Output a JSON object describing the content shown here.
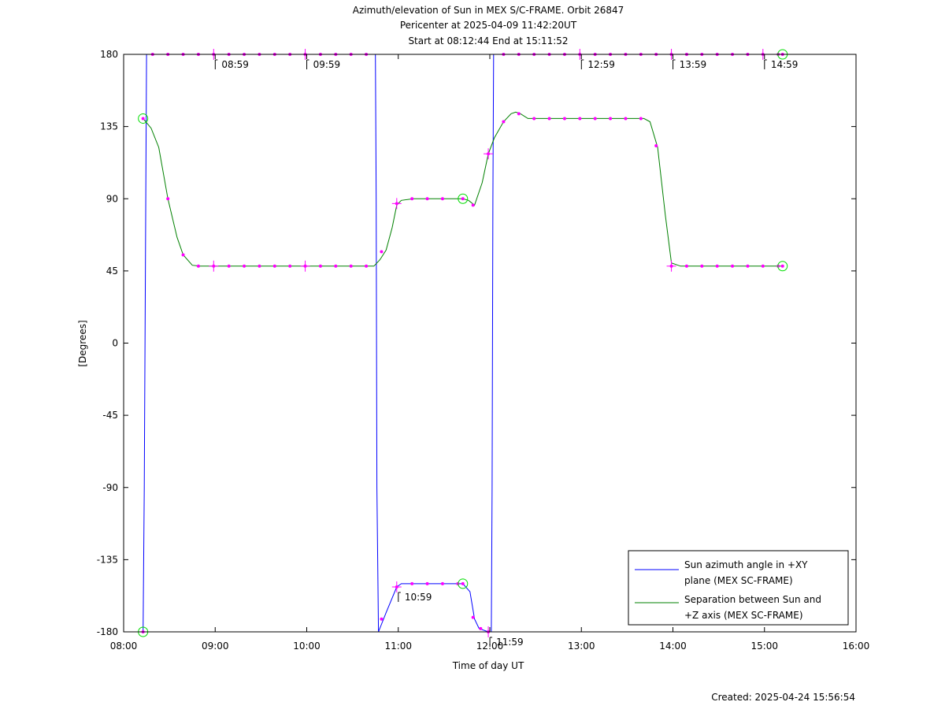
{
  "chart_data": {
    "type": "line",
    "title": "Azimuth/elevation of Sun in MEX S/C-FRAME.  Orbit 26847",
    "subtitle_lines": [
      "Pericenter at 2025-04-09 11:42:20UT",
      "Start at 08:12:44 End at 15:11:52"
    ],
    "xlabel": "Time of day UT",
    "ylabel": "[Degrees]",
    "xlim": [
      "08:00",
      "16:00"
    ],
    "ylim": [
      -180,
      180
    ],
    "x_ticks": [
      "08:00",
      "09:00",
      "10:00",
      "11:00",
      "12:00",
      "13:00",
      "14:00",
      "15:00",
      "16:00"
    ],
    "y_ticks": [
      180,
      135,
      90,
      45,
      0,
      -45,
      -90,
      -135,
      -180
    ],
    "grid": false,
    "legend_position": "bottom-right",
    "series": [
      {
        "name": "Sun azimuth angle in +XY plane (MEX SC-FRAME)",
        "legend_lines": [
          "Sun azimuth angle in +XY",
          "plane (MEX SC-FRAME)"
        ],
        "color": "#0000ff",
        "points": [
          [
            "08:12:44",
            -180
          ],
          [
            "08:13:30",
            -90
          ],
          [
            "08:14:30",
            90
          ],
          [
            "08:15:00",
            180
          ],
          [
            "10:45:00",
            180
          ],
          [
            "10:45:30",
            90
          ],
          [
            "10:46:00",
            -90
          ],
          [
            "10:47:00",
            -180
          ],
          [
            "10:52:00",
            -168
          ],
          [
            "10:59:00",
            -152
          ],
          [
            "11:02:00",
            -150
          ],
          [
            "11:12:00",
            -150
          ],
          [
            "11:25:00",
            -150
          ],
          [
            "11:35:00",
            -150
          ],
          [
            "11:42:20",
            -150
          ],
          [
            "11:47:00",
            -155
          ],
          [
            "11:50:00",
            -172
          ],
          [
            "11:53:00",
            -178
          ],
          [
            "11:59:00",
            -180
          ],
          [
            "12:01:00",
            -180
          ],
          [
            "12:01:30",
            -90
          ],
          [
            "12:02:00",
            90
          ],
          [
            "12:02:30",
            180
          ],
          [
            "15:11:52",
            180
          ]
        ]
      },
      {
        "name": "Separation between Sun and +Z axis (MEX SC-FRAME)",
        "legend_lines": [
          "Separation between Sun and",
          "+Z axis (MEX SC-FRAME)"
        ],
        "color": "#008000",
        "points": [
          [
            "08:12:44",
            140
          ],
          [
            "08:18:00",
            134
          ],
          [
            "08:23:00",
            122
          ],
          [
            "08:29:00",
            90
          ],
          [
            "08:35:00",
            66
          ],
          [
            "08:39:00",
            55
          ],
          [
            "08:45:00",
            48.5
          ],
          [
            "08:50:00",
            48
          ],
          [
            "10:44:00",
            48
          ],
          [
            "10:48:00",
            52
          ],
          [
            "10:52:00",
            58
          ],
          [
            "10:56:00",
            72
          ],
          [
            "10:59:00",
            86
          ],
          [
            "11:02:00",
            89
          ],
          [
            "11:10:00",
            90
          ],
          [
            "11:42:20",
            90
          ],
          [
            "11:46:00",
            89
          ],
          [
            "11:50:00",
            86
          ],
          [
            "11:55:00",
            100
          ],
          [
            "11:59:00",
            118
          ],
          [
            "12:03:00",
            128
          ],
          [
            "12:09:00",
            138
          ],
          [
            "12:14:00",
            143
          ],
          [
            "12:17:00",
            144
          ],
          [
            "12:20:00",
            143
          ],
          [
            "12:25:00",
            140
          ],
          [
            "12:35:00",
            140
          ],
          [
            "13:41:00",
            140
          ],
          [
            "13:45:00",
            138
          ],
          [
            "13:50:00",
            122
          ],
          [
            "13:55:00",
            80
          ],
          [
            "13:59:00",
            50
          ],
          [
            "14:05:00",
            48
          ],
          [
            "15:11:52",
            48
          ]
        ]
      }
    ],
    "dot_markers": {
      "color": "#ff00ff",
      "series": [
        {
          "name": "azimuth-top",
          "points": [
            [
              "08:59",
              180
            ],
            [
              "09:09",
              180
            ],
            [
              "09:19",
              180
            ],
            [
              "09:29",
              180
            ],
            [
              "09:39",
              180
            ],
            [
              "09:49",
              180
            ],
            [
              "09:59",
              180
            ],
            [
              "10:09",
              180
            ],
            [
              "10:19",
              180
            ],
            [
              "10:29",
              180
            ],
            [
              "10:39",
              180
            ],
            [
              "12:09",
              180
            ],
            [
              "12:19",
              180
            ],
            [
              "12:29",
              180
            ],
            [
              "12:39",
              180
            ],
            [
              "12:49",
              180
            ],
            [
              "12:59",
              180
            ],
            [
              "13:09",
              180
            ],
            [
              "13:19",
              180
            ],
            [
              "13:29",
              180
            ],
            [
              "13:39",
              180
            ],
            [
              "13:49",
              180
            ],
            [
              "13:59",
              180
            ],
            [
              "14:09",
              180
            ],
            [
              "14:19",
              180
            ],
            [
              "14:29",
              180
            ],
            [
              "14:39",
              180
            ],
            [
              "14:49",
              180
            ],
            [
              "14:59",
              180
            ],
            [
              "15:09",
              180
            ],
            [
              "08:19",
              180
            ],
            [
              "08:29",
              180
            ],
            [
              "08:39",
              180
            ],
            [
              "08:49",
              180
            ]
          ]
        },
        {
          "name": "azimuth-low",
          "points": [
            [
              "10:49",
              -172
            ],
            [
              "10:59",
              -152
            ],
            [
              "11:09",
              -150
            ],
            [
              "11:19",
              -150
            ],
            [
              "11:29",
              -150
            ],
            [
              "11:39",
              -150
            ],
            [
              "11:49",
              -171
            ],
            [
              "11:54",
              -178
            ],
            [
              "11:59",
              -180
            ]
          ]
        },
        {
          "name": "separation",
          "points": [
            [
              "08:29",
              90
            ],
            [
              "08:39",
              55
            ],
            [
              "08:49",
              48
            ],
            [
              "08:59",
              48
            ],
            [
              "09:09",
              48
            ],
            [
              "09:19",
              48
            ],
            [
              "09:29",
              48
            ],
            [
              "09:39",
              48
            ],
            [
              "09:49",
              48
            ],
            [
              "09:59",
              48
            ],
            [
              "10:09",
              48
            ],
            [
              "10:19",
              48
            ],
            [
              "10:29",
              48
            ],
            [
              "10:39",
              48
            ],
            [
              "10:49",
              57
            ],
            [
              "10:59",
              87
            ],
            [
              "11:09",
              90
            ],
            [
              "11:19",
              90
            ],
            [
              "11:29",
              90
            ],
            [
              "11:49",
              86
            ],
            [
              "11:59",
              118
            ],
            [
              "12:09",
              138
            ],
            [
              "12:19",
              143
            ],
            [
              "12:29",
              140
            ],
            [
              "12:39",
              140
            ],
            [
              "12:49",
              140
            ],
            [
              "12:59",
              140
            ],
            [
              "13:09",
              140
            ],
            [
              "13:19",
              140
            ],
            [
              "13:29",
              140
            ],
            [
              "13:39",
              140
            ],
            [
              "13:49",
              123
            ],
            [
              "13:59",
              48
            ],
            [
              "14:09",
              48
            ],
            [
              "14:19",
              48
            ],
            [
              "14:29",
              48
            ],
            [
              "14:39",
              48
            ],
            [
              "14:49",
              48
            ],
            [
              "14:59",
              48
            ],
            [
              "15:09",
              48
            ]
          ]
        }
      ]
    },
    "hour_markers": {
      "color": "#ff00ff",
      "points": [
        [
          "08:59",
          180
        ],
        [
          "09:59",
          180
        ],
        [
          "10:59",
          87
        ],
        [
          "10:59",
          -152
        ],
        [
          "11:59",
          118
        ],
        [
          "11:59",
          -180
        ],
        [
          "12:59",
          180
        ],
        [
          "13:59",
          180
        ],
        [
          "13:59",
          48
        ],
        [
          "14:59",
          180
        ],
        [
          "08:59",
          48
        ],
        [
          "09:59",
          48
        ]
      ]
    },
    "hour_labels": [
      {
        "text": "08:59",
        "x": "08:59",
        "y": 180
      },
      {
        "text": "09:59",
        "x": "09:59",
        "y": 180
      },
      {
        "text": "10:59",
        "x": "10:59",
        "y": -152
      },
      {
        "text": "11:59",
        "x": "11:59",
        "y": -180
      },
      {
        "text": "12:59",
        "x": "12:59",
        "y": 180
      },
      {
        "text": "13:59",
        "x": "13:59",
        "y": 180
      },
      {
        "text": "14:59",
        "x": "14:59",
        "y": 180
      }
    ],
    "circle_markers": {
      "color": "#00dd00",
      "points": [
        [
          "08:12:44",
          140
        ],
        [
          "08:12:44",
          -180
        ],
        [
          "11:42:20",
          90
        ],
        [
          "11:42:20",
          -150
        ],
        [
          "15:11:52",
          180
        ],
        [
          "15:11:52",
          48
        ]
      ]
    }
  },
  "footer": {
    "created": "Created: 2025-04-24 15:56:54"
  }
}
